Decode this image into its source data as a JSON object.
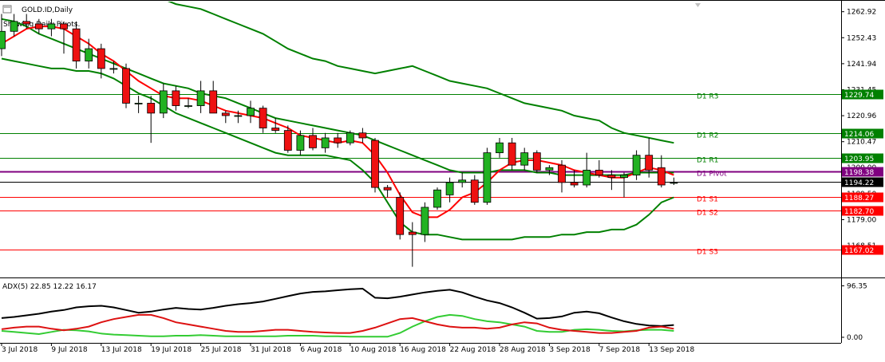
{
  "chart_data": {
    "type": "candlestick",
    "symbol_line": "GOLD.ID,Daily",
    "subtitle": "Showing Daily Pivots.",
    "y_ticks": [
      "1262.92",
      "1252.43",
      "1241.94",
      "1231.45",
      "1220.96",
      "1210.47",
      "1200.00",
      "1189.50",
      "1179.00",
      "1168.51"
    ],
    "ylim": [
      1156,
      1267
    ],
    "pivots": [
      {
        "label": "D1 R3",
        "value": 1229.74,
        "badge": "1229.74",
        "color": "#008000",
        "badge_color": "#008000"
      },
      {
        "label": "D1 R2",
        "value": 1214.06,
        "badge": "1214.06",
        "color": "#008000",
        "badge_color": "#008000"
      },
      {
        "label": "D1 R1",
        "value": 1203.95,
        "badge": "1203.95",
        "color": "#008000",
        "badge_color": "#008000"
      },
      {
        "label": "D1 Pivot",
        "value": 1198.38,
        "badge": "1198.38",
        "color": "#800080",
        "badge_color": "#800080"
      },
      {
        "label": "D1 S1",
        "value": 1188.27,
        "badge": "1188.27",
        "color": "#ff0000",
        "badge_color": "#ff0000"
      },
      {
        "label": "D1 S2",
        "value": 1182.7,
        "badge": "1182.70",
        "color": "#ff0000",
        "badge_color": "#ff0000"
      },
      {
        "label": "D1 S3",
        "value": 1167.02,
        "badge": "1167.02",
        "color": "#ff0000",
        "badge_color": "#ff0000"
      }
    ],
    "current_price": {
      "value": 1194.22,
      "badge": "1194.22"
    },
    "x_labels": [
      {
        "text": "3 Jul 2018",
        "index": 0
      },
      {
        "text": "9 Jul 2018",
        "index": 4
      },
      {
        "text": "13 Jul 2018",
        "index": 8
      },
      {
        "text": "19 Jul 2018",
        "index": 12
      },
      {
        "text": "25 Jul 2018",
        "index": 16
      },
      {
        "text": "31 Jul 2018",
        "index": 20
      },
      {
        "text": "6 Aug 2018",
        "index": 24
      },
      {
        "text": "10 Aug 2018",
        "index": 28
      },
      {
        "text": "16 Aug 2018",
        "index": 32
      },
      {
        "text": "22 Aug 2018",
        "index": 36
      },
      {
        "text": "28 Aug 2018",
        "index": 40
      },
      {
        "text": "3 Sep 2018",
        "index": 44
      },
      {
        "text": "7 Sep 2018",
        "index": 48
      },
      {
        "text": "13 Sep 2018",
        "index": 52
      }
    ],
    "candles": [
      {
        "o": 1248,
        "h": 1262,
        "l": 1245,
        "c": 1255
      },
      {
        "o": 1255,
        "h": 1262,
        "l": 1253,
        "c": 1259
      },
      {
        "o": 1259,
        "h": 1262,
        "l": 1256,
        "c": 1258
      },
      {
        "o": 1258,
        "h": 1260,
        "l": 1254,
        "c": 1256
      },
      {
        "o": 1256,
        "h": 1260,
        "l": 1253,
        "c": 1258
      },
      {
        "o": 1258,
        "h": 1259,
        "l": 1246,
        "c": 1256
      },
      {
        "o": 1256,
        "h": 1259,
        "l": 1240,
        "c": 1243
      },
      {
        "o": 1243,
        "h": 1252,
        "l": 1240,
        "c": 1248
      },
      {
        "o": 1248,
        "h": 1250,
        "l": 1236,
        "c": 1240
      },
      {
        "o": 1240,
        "h": 1243,
        "l": 1238,
        "c": 1240
      },
      {
        "o": 1240,
        "h": 1242,
        "l": 1224,
        "c": 1226
      },
      {
        "o": 1226,
        "h": 1229,
        "l": 1222,
        "c": 1226
      },
      {
        "o": 1226,
        "h": 1229,
        "l": 1210,
        "c": 1222
      },
      {
        "o": 1222,
        "h": 1234,
        "l": 1220,
        "c": 1231
      },
      {
        "o": 1231,
        "h": 1233,
        "l": 1223,
        "c": 1225
      },
      {
        "o": 1225,
        "h": 1228,
        "l": 1224,
        "c": 1225
      },
      {
        "o": 1225,
        "h": 1235,
        "l": 1222,
        "c": 1231
      },
      {
        "o": 1231,
        "h": 1235,
        "l": 1222,
        "c": 1222
      },
      {
        "o": 1222,
        "h": 1223,
        "l": 1218,
        "c": 1221
      },
      {
        "o": 1221,
        "h": 1223,
        "l": 1218,
        "c": 1221
      },
      {
        "o": 1221,
        "h": 1227,
        "l": 1218,
        "c": 1224
      },
      {
        "o": 1224,
        "h": 1225,
        "l": 1214,
        "c": 1216
      },
      {
        "o": 1216,
        "h": 1220,
        "l": 1214,
        "c": 1215
      },
      {
        "o": 1215,
        "h": 1217,
        "l": 1206,
        "c": 1207
      },
      {
        "o": 1207,
        "h": 1215,
        "l": 1205,
        "c": 1213
      },
      {
        "o": 1213,
        "h": 1216,
        "l": 1207,
        "c": 1208
      },
      {
        "o": 1208,
        "h": 1214,
        "l": 1206,
        "c": 1212
      },
      {
        "o": 1212,
        "h": 1214,
        "l": 1208,
        "c": 1210
      },
      {
        "o": 1210,
        "h": 1215,
        "l": 1209,
        "c": 1214
      },
      {
        "o": 1214,
        "h": 1216,
        "l": 1210,
        "c": 1212
      },
      {
        "o": 1211,
        "h": 1212,
        "l": 1190,
        "c": 1192
      },
      {
        "o": 1192,
        "h": 1193,
        "l": 1188,
        "c": 1191
      },
      {
        "o": 1188,
        "h": 1190,
        "l": 1171,
        "c": 1173
      },
      {
        "o": 1174,
        "h": 1178,
        "l": 1160,
        "c": 1173
      },
      {
        "o": 1173,
        "h": 1186,
        "l": 1170,
        "c": 1184
      },
      {
        "o": 1184,
        "h": 1192,
        "l": 1183,
        "c": 1191
      },
      {
        "o": 1189,
        "h": 1196,
        "l": 1186,
        "c": 1194
      },
      {
        "o": 1194,
        "h": 1198,
        "l": 1192,
        "c": 1195
      },
      {
        "o": 1195,
        "h": 1197,
        "l": 1185,
        "c": 1186
      },
      {
        "o": 1186,
        "h": 1208,
        "l": 1185,
        "c": 1206
      },
      {
        "o": 1206,
        "h": 1212,
        "l": 1204,
        "c": 1210
      },
      {
        "o": 1210,
        "h": 1212,
        "l": 1199,
        "c": 1201
      },
      {
        "o": 1201,
        "h": 1208,
        "l": 1199,
        "c": 1206
      },
      {
        "o": 1206,
        "h": 1207,
        "l": 1198,
        "c": 1199
      },
      {
        "o": 1199,
        "h": 1201,
        "l": 1197,
        "c": 1200
      },
      {
        "o": 1201,
        "h": 1203,
        "l": 1190,
        "c": 1194
      },
      {
        "o": 1194,
        "h": 1199,
        "l": 1192,
        "c": 1193
      },
      {
        "o": 1193,
        "h": 1206,
        "l": 1192,
        "c": 1199
      },
      {
        "o": 1199,
        "h": 1203,
        "l": 1196,
        "c": 1197
      },
      {
        "o": 1197,
        "h": 1199,
        "l": 1191,
        "c": 1196
      },
      {
        "o": 1196,
        "h": 1198,
        "l": 1188,
        "c": 1197
      },
      {
        "o": 1197,
        "h": 1207,
        "l": 1195,
        "c": 1205
      },
      {
        "o": 1205,
        "h": 1212,
        "l": 1196,
        "c": 1199
      },
      {
        "o": 1200,
        "h": 1205,
        "l": 1192,
        "c": 1193
      },
      {
        "o": 1194,
        "h": 1196,
        "l": 1193,
        "c": 1194
      }
    ],
    "overlays": {
      "bands_upper": [
        1290,
        1289,
        1288,
        1287,
        1286,
        1285,
        1284,
        1282,
        1280,
        1278,
        1276,
        1274,
        1271,
        1268,
        1266,
        1265,
        1264,
        1262,
        1260,
        1258,
        1256,
        1254,
        1251,
        1248,
        1246,
        1244,
        1243,
        1241,
        1240,
        1239,
        1238,
        1239,
        1240,
        1241,
        1239,
        1237,
        1235,
        1234,
        1233,
        1232,
        1230,
        1228,
        1226,
        1225,
        1224,
        1223,
        1221,
        1220,
        1219,
        1216,
        1214,
        1213,
        1212,
        1211,
        1210
      ],
      "bands_mid": [
        1260,
        1259,
        1257,
        1254,
        1252,
        1250,
        1248,
        1246,
        1244,
        1242,
        1240,
        1238,
        1236,
        1234,
        1233,
        1232,
        1230,
        1229,
        1228,
        1226,
        1224,
        1222,
        1220,
        1219,
        1218,
        1217,
        1216,
        1215,
        1214,
        1213,
        1211,
        1209,
        1207,
        1205,
        1203,
        1201,
        1199,
        1198,
        1198,
        1198,
        1199,
        1199,
        1199,
        1198,
        1198,
        1197,
        1197,
        1197,
        1197,
        1197,
        1197,
        1198,
        1198,
        1198,
        1198
      ],
      "bands_lower": [
        1244,
        1243,
        1242,
        1241,
        1240,
        1240,
        1239,
        1239,
        1238,
        1236,
        1233,
        1230,
        1228,
        1225,
        1222,
        1220,
        1218,
        1216,
        1214,
        1212,
        1210,
        1208,
        1206,
        1205,
        1205,
        1205,
        1205,
        1204,
        1203,
        1199,
        1194,
        1186,
        1178,
        1174,
        1173,
        1173,
        1172,
        1171,
        1171,
        1171,
        1171,
        1171,
        1172,
        1172,
        1172,
        1173,
        1173,
        1174,
        1174,
        1175,
        1175,
        1177,
        1181,
        1186,
        1188
      ],
      "sma_red": [
        1250,
        1253,
        1256,
        1257,
        1257,
        1256,
        1253,
        1250,
        1246,
        1243,
        1239,
        1235,
        1232,
        1229,
        1228,
        1228,
        1227,
        1225,
        1223,
        1222,
        1221,
        1220,
        1218,
        1216,
        1213,
        1212,
        1211,
        1210,
        1211,
        1210,
        1205,
        1198,
        1189,
        1182,
        1180,
        1180,
        1183,
        1188,
        1190,
        1194,
        1199,
        1202,
        1203,
        1203,
        1202,
        1201,
        1199,
        1198,
        1197,
        1196,
        1196,
        1198,
        1200,
        1199,
        1197
      ]
    },
    "adx": {
      "label": "ADX(5) 22.85 12.22 16.17",
      "y_ticks": [
        "96.35",
        "0.00"
      ],
      "ylim": [
        0,
        100
      ],
      "adx_line": [
        36,
        38,
        41,
        44,
        48,
        51,
        56,
        58,
        59,
        56,
        51,
        46,
        48,
        52,
        55,
        53,
        52,
        55,
        59,
        62,
        64,
        67,
        72,
        77,
        82,
        85,
        86,
        88,
        90,
        91,
        74,
        73,
        76,
        80,
        84,
        87,
        89,
        84,
        76,
        69,
        64,
        56,
        46,
        35,
        36,
        39,
        46,
        48,
        45,
        37,
        30,
        25,
        22,
        21,
        23
      ],
      "plus_di": [
        12,
        10,
        8,
        6,
        10,
        14,
        13,
        11,
        7,
        5,
        4,
        3,
        2,
        2,
        3,
        3,
        4,
        3,
        2,
        2,
        2,
        2,
        2,
        3,
        3,
        3,
        2,
        2,
        1,
        1,
        1,
        1,
        8,
        20,
        30,
        38,
        42,
        40,
        34,
        30,
        28,
        24,
        20,
        12,
        10,
        10,
        14,
        15,
        14,
        12,
        11,
        13,
        14,
        14,
        12
      ],
      "minus_di": [
        15,
        18,
        20,
        20,
        16,
        13,
        16,
        20,
        28,
        34,
        38,
        42,
        42,
        36,
        28,
        24,
        20,
        16,
        12,
        10,
        10,
        12,
        14,
        14,
        12,
        10,
        9,
        8,
        8,
        12,
        18,
        26,
        34,
        36,
        30,
        24,
        20,
        18,
        18,
        16,
        18,
        24,
        28,
        26,
        18,
        14,
        12,
        10,
        8,
        8,
        10,
        12,
        18,
        20,
        16
      ]
    }
  }
}
